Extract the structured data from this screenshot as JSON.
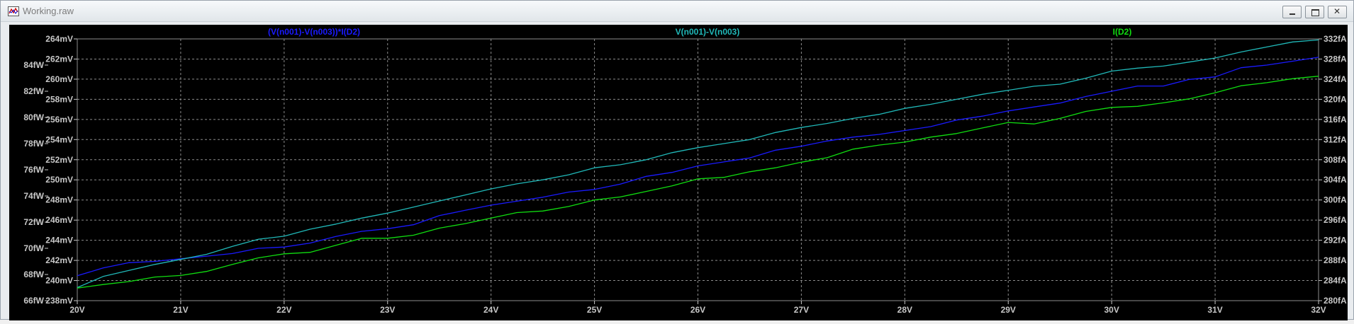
{
  "window": {
    "title": "Working.raw"
  },
  "colors": {
    "background": "#000000",
    "grid": "#8c8c8c",
    "axis_text": "#c8c8c8",
    "series_blue": "#1a1aff",
    "series_cyan": "#20b8b8",
    "series_green": "#10dd10"
  },
  "chart_data": {
    "type": "line",
    "grid": true,
    "x": [
      20,
      20.25,
      20.5,
      20.75,
      21,
      21.25,
      21.5,
      21.75,
      22,
      22.25,
      22.5,
      22.75,
      23,
      23.25,
      23.5,
      23.75,
      24,
      24.25,
      24.5,
      24.75,
      25,
      25.25,
      25.5,
      25.75,
      26,
      26.25,
      26.5,
      26.75,
      27,
      27.25,
      27.5,
      27.75,
      28,
      28.25,
      28.5,
      28.75,
      29,
      29.25,
      29.5,
      29.75,
      30,
      30.25,
      30.5,
      30.75,
      31,
      31.25,
      31.5,
      31.75,
      32
    ],
    "x_axis": {
      "range": [
        20,
        32
      ],
      "ticks": [
        "20V",
        "21V",
        "22V",
        "23V",
        "24V",
        "25V",
        "26V",
        "27V",
        "28V",
        "29V",
        "30V",
        "31V",
        "32V"
      ]
    },
    "y_axis_left_primary": {
      "range": [
        238,
        264
      ],
      "unit": "mV",
      "ticks": [
        "238mV",
        "240mV",
        "242mV",
        "244mV",
        "246mV",
        "248mV",
        "250mV",
        "252mV",
        "254mV",
        "256mV",
        "258mV",
        "260mV",
        "262mV",
        "264mV"
      ]
    },
    "y_axis_left_secondary": {
      "range": [
        66,
        86
      ],
      "unit": "fW",
      "ticks": [
        "66fW",
        "68fW",
        "70fW",
        "72fW",
        "74fW",
        "76fW",
        "78fW",
        "80fW",
        "82fW",
        "84fW"
      ]
    },
    "y_axis_right": {
      "range": [
        280,
        332
      ],
      "unit": "fA",
      "ticks": [
        "280fA",
        "284fA",
        "288fA",
        "292fA",
        "296fA",
        "300fA",
        "304fA",
        "308fA",
        "312fA",
        "316fA",
        "320fA",
        "324fA",
        "328fA",
        "332fA"
      ]
    },
    "series": [
      {
        "name": "(V(n001)-V(n003))*I(D2)",
        "axis": "left_secondary",
        "color": "#1a1aff",
        "values": [
          67.9,
          68.5,
          68.9,
          69.0,
          69.2,
          69.4,
          69.6,
          70.0,
          70.1,
          70.4,
          70.9,
          71.3,
          71.5,
          71.8,
          72.5,
          72.9,
          73.3,
          73.6,
          73.9,
          74.3,
          74.5,
          74.9,
          75.5,
          75.8,
          76.3,
          76.6,
          76.9,
          77.5,
          77.8,
          78.2,
          78.5,
          78.7,
          79.0,
          79.3,
          79.8,
          80.1,
          80.5,
          80.8,
          81.1,
          81.6,
          82.0,
          82.4,
          82.4,
          82.9,
          83.1,
          83.8,
          84.0,
          84.3,
          84.6
        ]
      },
      {
        "name": "V(n001)-V(n003)",
        "axis": "left_primary",
        "color": "#20b8b8",
        "values": [
          239.3,
          240.4,
          241.0,
          241.6,
          242.1,
          242.6,
          243.4,
          244.1,
          244.4,
          245.1,
          245.6,
          246.2,
          246.7,
          247.3,
          247.9,
          248.5,
          249.1,
          249.6,
          250.0,
          250.5,
          251.2,
          251.5,
          252.0,
          252.7,
          253.2,
          253.6,
          254.0,
          254.7,
          255.2,
          255.6,
          256.1,
          256.5,
          257.1,
          257.5,
          258.0,
          258.5,
          258.9,
          259.3,
          259.5,
          260.1,
          260.8,
          261.1,
          261.3,
          261.7,
          262.1,
          262.7,
          263.2,
          263.7,
          263.9
        ]
      },
      {
        "name": "I(D2)",
        "axis": "right",
        "color": "#10dd10",
        "values": [
          282.5,
          283.2,
          283.8,
          284.7,
          285.0,
          285.8,
          287.2,
          288.5,
          289.3,
          289.6,
          291.0,
          292.4,
          292.4,
          293.0,
          294.4,
          295.3,
          296.4,
          297.5,
          297.8,
          298.7,
          300.0,
          300.6,
          301.7,
          302.8,
          304.2,
          304.5,
          305.6,
          306.4,
          307.5,
          308.4,
          310.1,
          310.9,
          311.5,
          312.5,
          313.2,
          314.3,
          315.4,
          315.1,
          316.2,
          317.6,
          318.4,
          318.6,
          319.3,
          320.1,
          321.3,
          322.7,
          323.3,
          324.1,
          324.6
        ]
      }
    ]
  }
}
